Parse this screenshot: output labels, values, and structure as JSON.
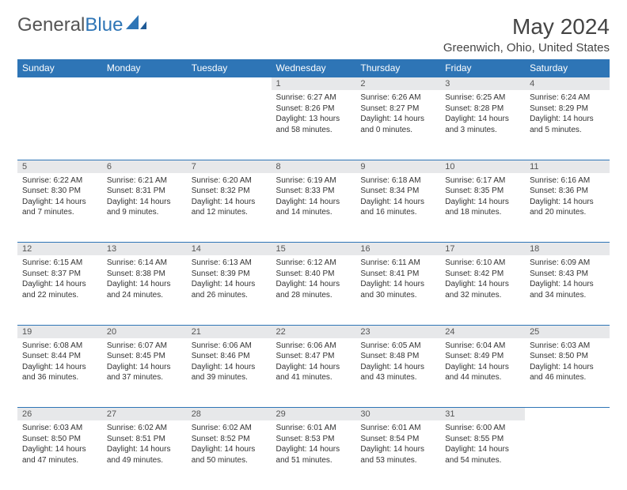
{
  "brand": {
    "part1": "General",
    "part2": "Blue"
  },
  "title": "May 2024",
  "location": "Greenwich, Ohio, United States",
  "colors": {
    "accent": "#2e75b6",
    "grayRow": "#e7e8ea",
    "text": "#333333"
  },
  "weekdays": [
    "Sunday",
    "Monday",
    "Tuesday",
    "Wednesday",
    "Thursday",
    "Friday",
    "Saturday"
  ],
  "weeks": [
    [
      null,
      null,
      null,
      {
        "n": "1",
        "sr": "6:27 AM",
        "ss": "8:26 PM",
        "dl": "13 hours and 58 minutes."
      },
      {
        "n": "2",
        "sr": "6:26 AM",
        "ss": "8:27 PM",
        "dl": "14 hours and 0 minutes."
      },
      {
        "n": "3",
        "sr": "6:25 AM",
        "ss": "8:28 PM",
        "dl": "14 hours and 3 minutes."
      },
      {
        "n": "4",
        "sr": "6:24 AM",
        "ss": "8:29 PM",
        "dl": "14 hours and 5 minutes."
      }
    ],
    [
      {
        "n": "5",
        "sr": "6:22 AM",
        "ss": "8:30 PM",
        "dl": "14 hours and 7 minutes."
      },
      {
        "n": "6",
        "sr": "6:21 AM",
        "ss": "8:31 PM",
        "dl": "14 hours and 9 minutes."
      },
      {
        "n": "7",
        "sr": "6:20 AM",
        "ss": "8:32 PM",
        "dl": "14 hours and 12 minutes."
      },
      {
        "n": "8",
        "sr": "6:19 AM",
        "ss": "8:33 PM",
        "dl": "14 hours and 14 minutes."
      },
      {
        "n": "9",
        "sr": "6:18 AM",
        "ss": "8:34 PM",
        "dl": "14 hours and 16 minutes."
      },
      {
        "n": "10",
        "sr": "6:17 AM",
        "ss": "8:35 PM",
        "dl": "14 hours and 18 minutes."
      },
      {
        "n": "11",
        "sr": "6:16 AM",
        "ss": "8:36 PM",
        "dl": "14 hours and 20 minutes."
      }
    ],
    [
      {
        "n": "12",
        "sr": "6:15 AM",
        "ss": "8:37 PM",
        "dl": "14 hours and 22 minutes."
      },
      {
        "n": "13",
        "sr": "6:14 AM",
        "ss": "8:38 PM",
        "dl": "14 hours and 24 minutes."
      },
      {
        "n": "14",
        "sr": "6:13 AM",
        "ss": "8:39 PM",
        "dl": "14 hours and 26 minutes."
      },
      {
        "n": "15",
        "sr": "6:12 AM",
        "ss": "8:40 PM",
        "dl": "14 hours and 28 minutes."
      },
      {
        "n": "16",
        "sr": "6:11 AM",
        "ss": "8:41 PM",
        "dl": "14 hours and 30 minutes."
      },
      {
        "n": "17",
        "sr": "6:10 AM",
        "ss": "8:42 PM",
        "dl": "14 hours and 32 minutes."
      },
      {
        "n": "18",
        "sr": "6:09 AM",
        "ss": "8:43 PM",
        "dl": "14 hours and 34 minutes."
      }
    ],
    [
      {
        "n": "19",
        "sr": "6:08 AM",
        "ss": "8:44 PM",
        "dl": "14 hours and 36 minutes."
      },
      {
        "n": "20",
        "sr": "6:07 AM",
        "ss": "8:45 PM",
        "dl": "14 hours and 37 minutes."
      },
      {
        "n": "21",
        "sr": "6:06 AM",
        "ss": "8:46 PM",
        "dl": "14 hours and 39 minutes."
      },
      {
        "n": "22",
        "sr": "6:06 AM",
        "ss": "8:47 PM",
        "dl": "14 hours and 41 minutes."
      },
      {
        "n": "23",
        "sr": "6:05 AM",
        "ss": "8:48 PM",
        "dl": "14 hours and 43 minutes."
      },
      {
        "n": "24",
        "sr": "6:04 AM",
        "ss": "8:49 PM",
        "dl": "14 hours and 44 minutes."
      },
      {
        "n": "25",
        "sr": "6:03 AM",
        "ss": "8:50 PM",
        "dl": "14 hours and 46 minutes."
      }
    ],
    [
      {
        "n": "26",
        "sr": "6:03 AM",
        "ss": "8:50 PM",
        "dl": "14 hours and 47 minutes."
      },
      {
        "n": "27",
        "sr": "6:02 AM",
        "ss": "8:51 PM",
        "dl": "14 hours and 49 minutes."
      },
      {
        "n": "28",
        "sr": "6:02 AM",
        "ss": "8:52 PM",
        "dl": "14 hours and 50 minutes."
      },
      {
        "n": "29",
        "sr": "6:01 AM",
        "ss": "8:53 PM",
        "dl": "14 hours and 51 minutes."
      },
      {
        "n": "30",
        "sr": "6:01 AM",
        "ss": "8:54 PM",
        "dl": "14 hours and 53 minutes."
      },
      {
        "n": "31",
        "sr": "6:00 AM",
        "ss": "8:55 PM",
        "dl": "14 hours and 54 minutes."
      },
      null
    ]
  ],
  "labels": {
    "sunrise": "Sunrise:",
    "sunset": "Sunset:",
    "daylight": "Daylight:"
  }
}
